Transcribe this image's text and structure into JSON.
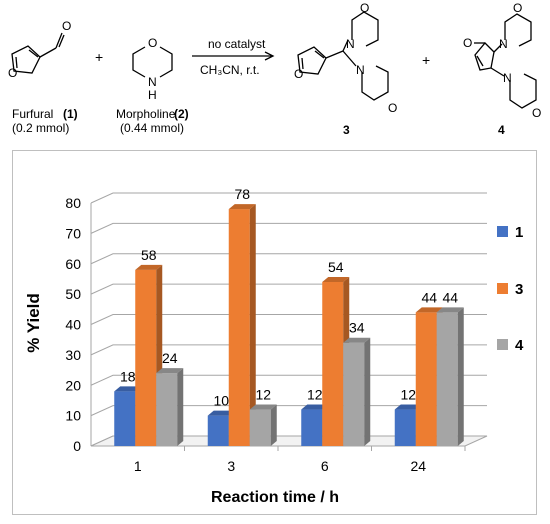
{
  "scheme": {
    "reagent1_name": "Furfural",
    "reagent1_num": "(1)",
    "reagent1_amount": "(0.2 mmol)",
    "plus1": "+",
    "reagent2_name": "Morpholine",
    "reagent2_num": "(2)",
    "reagent2_amount": "(0.44 mmol)",
    "condition_top": "no catalyst",
    "condition_bottom": "CH₃CN, r.t.",
    "plus2": "+",
    "product3_label": "3",
    "product4_label": "4",
    "atom_O": "O",
    "atom_N": "N",
    "atom_H": "H"
  },
  "chart_data": {
    "type": "bar",
    "categories": [
      "1",
      "3",
      "6",
      "24"
    ],
    "series": [
      {
        "name": "1",
        "values": [
          18,
          10,
          12,
          12
        ],
        "color": "#4472C4",
        "labels": [
          "18",
          "10",
          "12",
          "12"
        ]
      },
      {
        "name": "3",
        "values": [
          58,
          78,
          54,
          44
        ],
        "color": "#ED7D31",
        "labels": [
          "58",
          "78",
          "54",
          "44"
        ]
      },
      {
        "name": "4",
        "values": [
          24,
          12,
          34,
          44
        ],
        "color": "#A5A5A5",
        "labels": [
          "24",
          "12",
          "34",
          "44"
        ]
      }
    ],
    "xlabel": "Reaction time / h",
    "ylabel": "% Yield",
    "ylim": [
      0,
      80
    ],
    "yticks": [
      "0",
      "10",
      "20",
      "30",
      "40",
      "50",
      "60",
      "70",
      "80"
    ],
    "grid": true,
    "legend_position": "right"
  }
}
